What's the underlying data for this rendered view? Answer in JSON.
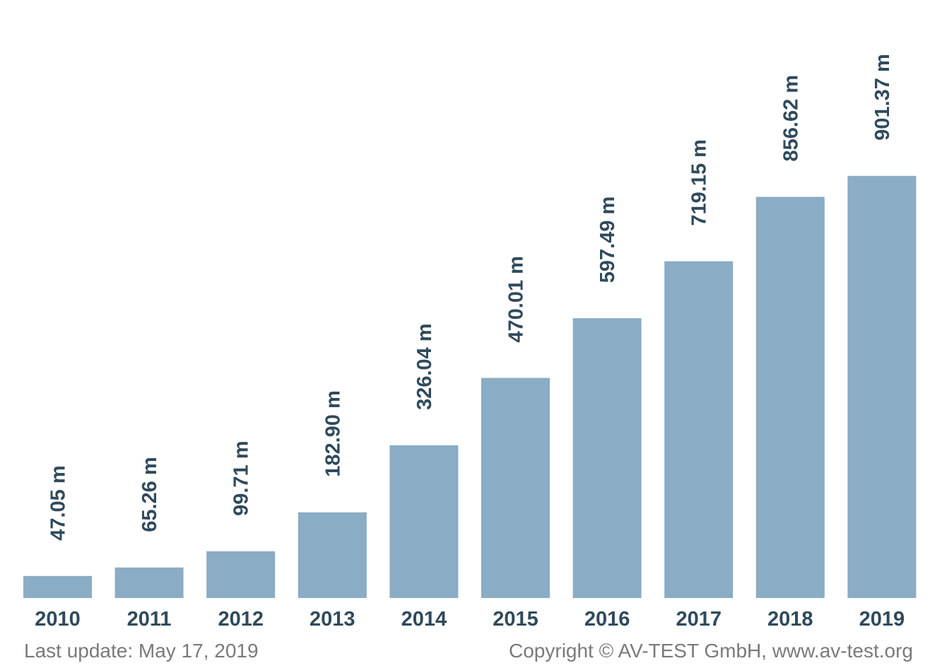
{
  "chart_data": {
    "type": "bar",
    "categories": [
      "2010",
      "2011",
      "2012",
      "2013",
      "2014",
      "2015",
      "2016",
      "2017",
      "2018",
      "2019"
    ],
    "values": [
      47.05,
      65.26,
      99.71,
      182.9,
      326.04,
      470.01,
      597.49,
      719.15,
      856.62,
      901.37
    ],
    "value_labels": [
      "47.05 m",
      "65.26 m",
      "99.71 m",
      "182.90 m",
      "326.04 m",
      "470.01 m",
      "597.49 m",
      "719.15 m",
      "856.62 m",
      "901.37 m"
    ],
    "title": "",
    "xlabel": "",
    "ylabel": "",
    "ylim": [
      0,
      1000
    ],
    "grid": false,
    "legend": "none",
    "bar_color": "#8aacc4",
    "label_color": "#2f4a5c"
  },
  "footer": {
    "last_update": "Last update: May 17, 2019",
    "copyright": "Copyright © AV-TEST GmbH, www.av-test.org"
  }
}
